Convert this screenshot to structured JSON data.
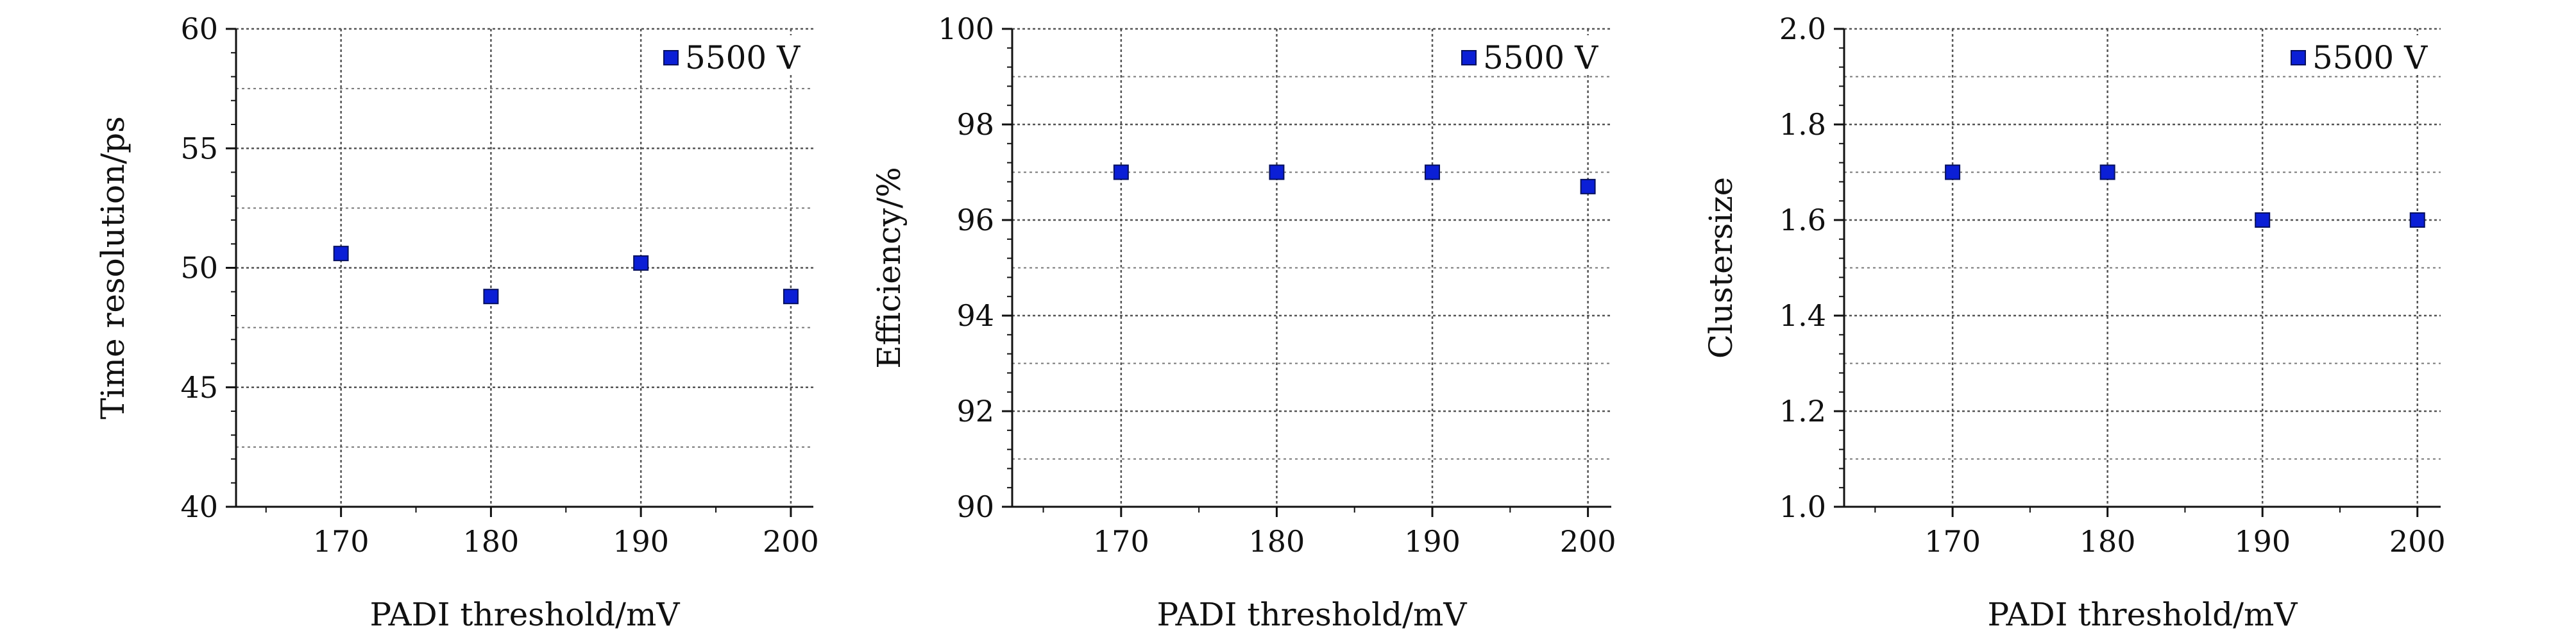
{
  "chart_data": [
    {
      "type": "scatter",
      "xlabel": "PADI threshold/mV",
      "ylabel": "Time resolution/ps",
      "xlim": [
        163,
        201.5
      ],
      "ylim": [
        40,
        60
      ],
      "xticks": [
        170,
        180,
        190,
        200
      ],
      "yticks": [
        40,
        45,
        50,
        55,
        60
      ],
      "grid": true,
      "legend_position": "top-right",
      "series": [
        {
          "name": "5500 V",
          "color": "#0b1fd6",
          "x": [
            170,
            180,
            190,
            200
          ],
          "y": [
            50.6,
            48.8,
            50.2,
            48.8
          ]
        }
      ]
    },
    {
      "type": "scatter",
      "xlabel": "PADI threshold/mV",
      "ylabel": "Efficiency/%",
      "xlim": [
        163,
        201.5
      ],
      "ylim": [
        90,
        100
      ],
      "xticks": [
        170,
        180,
        190,
        200
      ],
      "yticks": [
        90,
        92,
        94,
        96,
        98,
        100
      ],
      "grid": true,
      "legend_position": "top-right",
      "series": [
        {
          "name": "5500 V",
          "color": "#0b1fd6",
          "x": [
            170,
            180,
            190,
            200
          ],
          "y": [
            97.0,
            97.0,
            97.0,
            96.7
          ]
        }
      ]
    },
    {
      "type": "scatter",
      "xlabel": "PADI threshold/mV",
      "ylabel": "Clustersize",
      "xlim": [
        163,
        201.5
      ],
      "ylim": [
        1.0,
        2.0
      ],
      "xticks": [
        170,
        180,
        190,
        200
      ],
      "yticks": [
        "1.0",
        "1.2",
        "1.4",
        "1.6",
        "1.8",
        "2.0"
      ],
      "grid": true,
      "legend_position": "top-right",
      "series": [
        {
          "name": "5500 V",
          "color": "#0b1fd6",
          "x": [
            170,
            180,
            190,
            200
          ],
          "y": [
            1.7,
            1.7,
            1.6,
            1.6
          ]
        }
      ]
    }
  ]
}
